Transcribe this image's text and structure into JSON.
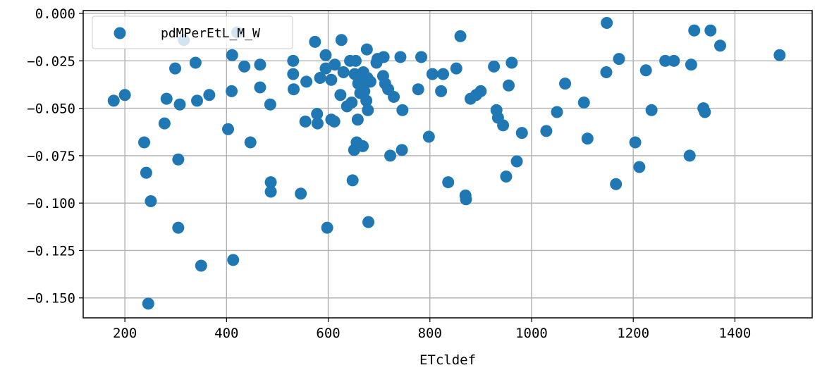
{
  "chart_data": {
    "type": "scatter",
    "title": "",
    "xlabel": "ETcldef",
    "ylabel": "",
    "xlim": [
      118,
      1552
    ],
    "ylim": [
      -0.1605,
      0.0015
    ],
    "xticks": [
      200,
      400,
      600,
      800,
      1000,
      1200,
      1400
    ],
    "xtick_labels": [
      "200",
      "400",
      "600",
      "800",
      "1000",
      "1200",
      "1400"
    ],
    "yticks": [
      0.0,
      -0.025,
      -0.05,
      -0.075,
      -0.1,
      -0.125,
      -0.15
    ],
    "ytick_labels": [
      "0.000",
      "−0.025",
      "−0.050",
      "−0.075",
      "−0.100",
      "−0.125",
      "−0.150"
    ],
    "grid": true,
    "legend_position": "top-left",
    "series": [
      {
        "name": "pdMPerEtL_M_W",
        "color": "#1f77b4",
        "marker": "circle",
        "points": [
          [
            178,
            -0.046
          ],
          [
            200,
            -0.043
          ],
          [
            238,
            -0.068
          ],
          [
            242,
            -0.084
          ],
          [
            246,
            -0.153
          ],
          [
            251,
            -0.099
          ],
          [
            278,
            -0.058
          ],
          [
            282,
            -0.045
          ],
          [
            299,
            -0.029
          ],
          [
            305,
            -0.077
          ],
          [
            305,
            -0.113
          ],
          [
            308,
            -0.048
          ],
          [
            316,
            -0.014
          ],
          [
            339,
            -0.026
          ],
          [
            342,
            -0.046
          ],
          [
            350,
            -0.133
          ],
          [
            366,
            -0.043
          ],
          [
            403,
            -0.061
          ],
          [
            410,
            -0.041
          ],
          [
            411,
            -0.022
          ],
          [
            413,
            -0.13
          ],
          [
            421,
            -0.01
          ],
          [
            435,
            -0.028
          ],
          [
            447,
            -0.068
          ],
          [
            466,
            -0.027
          ],
          [
            466,
            -0.039
          ],
          [
            486,
            -0.048
          ],
          [
            487,
            -0.089
          ],
          [
            487,
            -0.094
          ],
          [
            531,
            -0.025
          ],
          [
            531,
            -0.032
          ],
          [
            532,
            -0.04
          ],
          [
            546,
            -0.095
          ],
          [
            555,
            -0.057
          ],
          [
            557,
            -0.036
          ],
          [
            574,
            -0.015
          ],
          [
            578,
            -0.053
          ],
          [
            579,
            -0.058
          ],
          [
            584,
            -0.034
          ],
          [
            595,
            -0.022
          ],
          [
            595,
            -0.029
          ],
          [
            598,
            -0.113
          ],
          [
            606,
            -0.056
          ],
          [
            606,
            -0.035
          ],
          [
            612,
            -0.057
          ],
          [
            613,
            -0.027
          ],
          [
            624,
            -0.043
          ],
          [
            626,
            -0.014
          ],
          [
            630,
            -0.031
          ],
          [
            637,
            -0.049
          ],
          [
            643,
            -0.025
          ],
          [
            646,
            -0.047
          ],
          [
            648,
            -0.088
          ],
          [
            651,
            -0.072
          ],
          [
            652,
            -0.032
          ],
          [
            654,
            -0.025
          ],
          [
            656,
            -0.068
          ],
          [
            658,
            -0.056
          ],
          [
            659,
            -0.037
          ],
          [
            662,
            -0.036
          ],
          [
            663,
            -0.042
          ],
          [
            666,
            -0.04
          ],
          [
            667,
            -0.033
          ],
          [
            668,
            -0.07
          ],
          [
            669,
            -0.031
          ],
          [
            671,
            -0.041
          ],
          [
            673,
            -0.036
          ],
          [
            675,
            -0.046
          ],
          [
            676,
            -0.019
          ],
          [
            677,
            -0.034
          ],
          [
            678,
            -0.051
          ],
          [
            679,
            -0.11
          ],
          [
            683,
            -0.036
          ],
          [
            695,
            -0.026
          ],
          [
            697,
            -0.024
          ],
          [
            708,
            -0.033
          ],
          [
            709,
            -0.023
          ],
          [
            712,
            -0.037
          ],
          [
            718,
            -0.04
          ],
          [
            722,
            -0.075
          ],
          [
            729,
            -0.044
          ],
          [
            742,
            -0.023
          ],
          [
            745,
            -0.072
          ],
          [
            746,
            -0.051
          ],
          [
            777,
            -0.04
          ],
          [
            783,
            -0.023
          ],
          [
            798,
            -0.065
          ],
          [
            805,
            -0.032
          ],
          [
            822,
            -0.041
          ],
          [
            826,
            -0.032
          ],
          [
            836,
            -0.089
          ],
          [
            852,
            -0.029
          ],
          [
            860,
            -0.012
          ],
          [
            870,
            -0.096
          ],
          [
            871,
            -0.098
          ],
          [
            880,
            -0.045
          ],
          [
            891,
            -0.043
          ],
          [
            900,
            -0.041
          ],
          [
            926,
            -0.028
          ],
          [
            931,
            -0.051
          ],
          [
            934,
            -0.055
          ],
          [
            944,
            -0.059
          ],
          [
            950,
            -0.086
          ],
          [
            955,
            -0.038
          ],
          [
            961,
            -0.026
          ],
          [
            971,
            -0.078
          ],
          [
            981,
            -0.063
          ],
          [
            1029,
            -0.062
          ],
          [
            1050,
            -0.052
          ],
          [
            1066,
            -0.037
          ],
          [
            1103,
            -0.047
          ],
          [
            1110,
            -0.066
          ],
          [
            1147,
            -0.031
          ],
          [
            1148,
            -0.005
          ],
          [
            1166,
            -0.09
          ],
          [
            1172,
            -0.024
          ],
          [
            1204,
            -0.068
          ],
          [
            1212,
            -0.081
          ],
          [
            1225,
            -0.03
          ],
          [
            1236,
            -0.051
          ],
          [
            1263,
            -0.025
          ],
          [
            1280,
            -0.025
          ],
          [
            1311,
            -0.075
          ],
          [
            1314,
            -0.027
          ],
          [
            1320,
            -0.009
          ],
          [
            1338,
            -0.05
          ],
          [
            1341,
            -0.052
          ],
          [
            1352,
            -0.009
          ],
          [
            1371,
            -0.017
          ],
          [
            1488,
            -0.022
          ]
        ]
      }
    ]
  }
}
